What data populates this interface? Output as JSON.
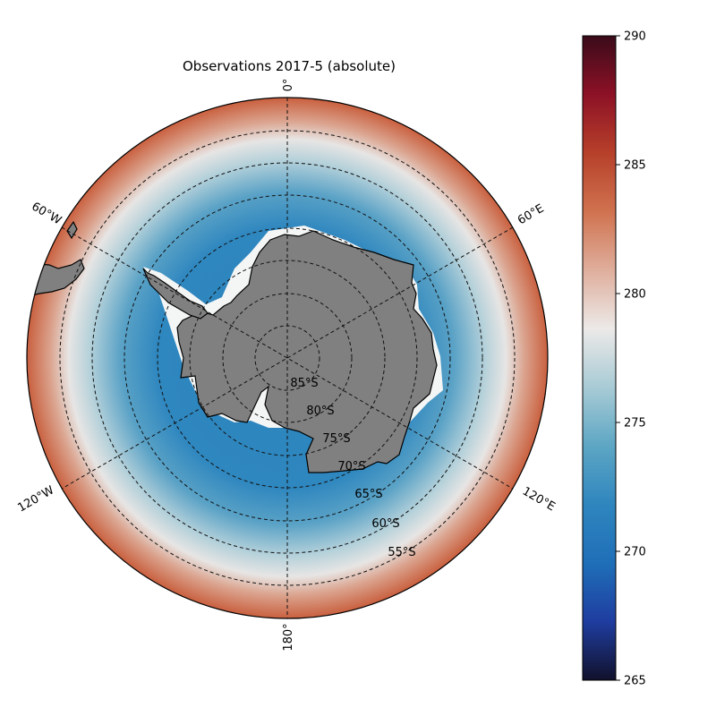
{
  "title": "Observations 2017-5 (absolute)",
  "map": {
    "projection": "south-polar-stereographic",
    "longitude_labels": [
      "0°",
      "60°E",
      "120°E",
      "180°",
      "120°W",
      "60°W"
    ],
    "latitude_labels": [
      "85°S",
      "80°S",
      "75°S",
      "70°S",
      "65°S",
      "60°S",
      "55°S"
    ],
    "gridlines": "dashed",
    "land_color": "#808080",
    "sea_ice_color": "#f4f6f6"
  },
  "colorbar": {
    "min": 265,
    "max": 290,
    "ticks": [
      "265",
      "270",
      "275",
      "280",
      "285",
      "290"
    ],
    "colors": [
      "#11112b",
      "#1f3da0",
      "#1f6fb8",
      "#2f86be",
      "#5da6c4",
      "#a8cbd5",
      "#ece9e8",
      "#dfae9c",
      "#d0724f",
      "#b6402a",
      "#8d1126",
      "#3a0b1a"
    ]
  }
}
